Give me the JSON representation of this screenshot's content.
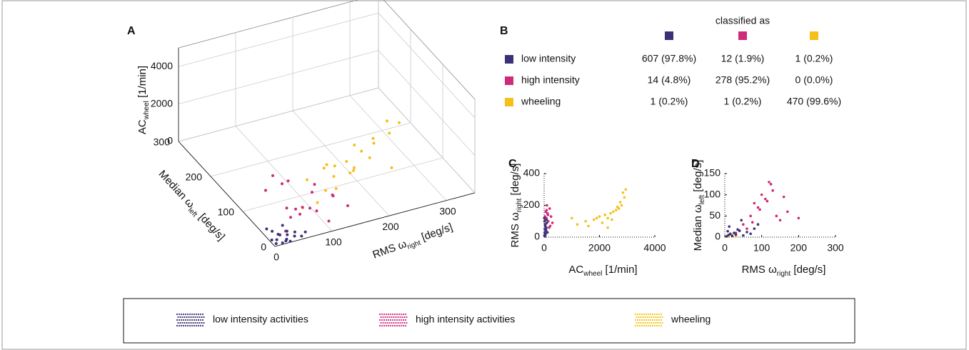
{
  "chart_data": [
    {
      "type": "scatter3d",
      "panel_label": "A",
      "x_label": {
        "text": "RMS ω",
        "sub": "right",
        "unit": " [deg/s]"
      },
      "y_label": {
        "text": "Median ω",
        "sub": "left",
        "unit": " [deg/s]"
      },
      "z_label": {
        "text": "AC",
        "sub": "wheel",
        "unit": " [1/min]"
      },
      "xlim": [
        0,
        350
      ],
      "ylim": [
        0,
        300
      ],
      "zlim": [
        0,
        5000
      ],
      "xticks": [
        0,
        100,
        200,
        300
      ],
      "yticks": [
        0,
        100,
        200,
        300
      ],
      "zticks": [
        0,
        2000,
        4000
      ],
      "grid": true,
      "series": [
        {
          "name": "wheeling",
          "color": "#f5c01a",
          "x": [
            80,
            100,
            120,
            140,
            160,
            180,
            200,
            220,
            90,
            110,
            130,
            150,
            170,
            190,
            210,
            240,
            100,
            130,
            160,
            60,
            230,
            145
          ],
          "y": [
            10,
            20,
            30,
            15,
            40,
            25,
            50,
            35,
            60,
            5,
            45,
            20,
            55,
            30,
            10,
            40,
            25,
            70,
            15,
            20,
            60,
            35
          ],
          "values": [
            1500,
            1800,
            2200,
            2500,
            2000,
            2800,
            3200,
            3600,
            1700,
            2100,
            2400,
            2600,
            3000,
            3400,
            2300,
            3900,
            2900,
            2000,
            3500,
            1200,
            3700,
            2700
          ]
        },
        {
          "name": "high intensity activities",
          "color": "#d02a7b",
          "x": [
            30,
            50,
            70,
            90,
            110,
            130,
            40,
            60,
            80,
            100,
            120,
            150,
            55,
            75,
            95,
            65,
            85,
            140
          ],
          "y": [
            20,
            40,
            60,
            30,
            80,
            50,
            100,
            70,
            120,
            10,
            90,
            40,
            20,
            140,
            60,
            30,
            110,
            70
          ],
          "values": [
            200,
            400,
            300,
            600,
            500,
            700,
            800,
            250,
            450,
            350,
            650,
            200,
            900,
            550,
            150,
            1000,
            750,
            300
          ]
        },
        {
          "name": "low intensity activities",
          "color": "#3b3276",
          "x": [
            5,
            10,
            15,
            20,
            25,
            30,
            35,
            40,
            12,
            22,
            45,
            50,
            8,
            18,
            28,
            60,
            3,
            33
          ],
          "y": [
            5,
            12,
            3,
            20,
            8,
            15,
            25,
            10,
            30,
            5,
            18,
            6,
            40,
            22,
            2,
            12,
            15,
            35
          ],
          "values": [
            20,
            50,
            10,
            80,
            30,
            100,
            60,
            40,
            150,
            20,
            70,
            30,
            120,
            90,
            10,
            60,
            40,
            200
          ]
        }
      ]
    },
    {
      "type": "scatter",
      "panel_label": "C",
      "x_label": {
        "text": "AC",
        "sub": "wheel",
        "unit": " [1/min]"
      },
      "y_label": {
        "text": "RMS ω",
        "sub": "right",
        "unit": " [deg/s]"
      },
      "xlim": [
        0,
        4000
      ],
      "ylim": [
        0,
        400
      ],
      "xticks": [
        0,
        2000,
        4000
      ],
      "yticks": [
        0,
        200,
        400
      ],
      "series": [
        {
          "color": "#f5c01a",
          "x": [
            1200,
            1500,
            1800,
            2000,
            2100,
            2200,
            2300,
            2400,
            2500,
            2600,
            2700,
            2800,
            2900,
            1600,
            1900,
            2450,
            2750,
            2950,
            1000,
            2650,
            2850,
            2300
          ],
          "values": [
            80,
            100,
            110,
            130,
            90,
            140,
            120,
            150,
            160,
            170,
            180,
            200,
            250,
            70,
            120,
            110,
            220,
            300,
            120,
            190,
            280,
            60
          ]
        },
        {
          "color": "#d02a7b",
          "x": [
            20,
            50,
            80,
            120,
            150,
            200,
            250,
            300,
            60,
            100,
            180,
            40,
            140,
            90,
            220,
            30
          ],
          "values": [
            50,
            80,
            120,
            150,
            100,
            180,
            130,
            90,
            160,
            200,
            60,
            110,
            140,
            170,
            70,
            130
          ]
        },
        {
          "color": "#3b3276",
          "x": [
            10,
            20,
            30,
            40,
            50,
            60,
            80,
            100,
            15,
            25,
            35,
            120,
            5,
            45,
            70,
            90
          ],
          "values": [
            10,
            30,
            50,
            70,
            20,
            40,
            60,
            90,
            100,
            5,
            80,
            30,
            120,
            15,
            45,
            110
          ]
        }
      ]
    },
    {
      "type": "scatter",
      "panel_label": "D",
      "x_label": {
        "text": "RMS ω",
        "sub": "right",
        "unit": " [deg/s]"
      },
      "y_label": {
        "text": "Median ω",
        "sub": "left",
        "unit": " [deg/s]"
      },
      "xlim": [
        0,
        300
      ],
      "ylim": [
        0,
        150
      ],
      "xticks": [
        0,
        100,
        200,
        300
      ],
      "yticks": [
        0,
        50,
        100,
        150
      ],
      "series": [
        {
          "color": "#f5c01a",
          "x": [
            10,
            20,
            30,
            15
          ],
          "values": [
            2,
            4,
            3,
            6
          ]
        },
        {
          "color": "#d02a7b",
          "x": [
            30,
            50,
            70,
            90,
            110,
            130,
            150,
            170,
            60,
            80,
            100,
            120,
            140,
            40,
            200,
            125,
            75,
            95,
            115,
            160
          ],
          "values": [
            10,
            30,
            50,
            70,
            90,
            110,
            40,
            60,
            20,
            80,
            100,
            130,
            50,
            15,
            45,
            125,
            35,
            65,
            85,
            95
          ]
        },
        {
          "color": "#3b3276",
          "x": [
            5,
            10,
            15,
            20,
            25,
            30,
            40,
            50,
            60,
            70,
            80,
            90,
            12,
            35,
            45,
            8
          ],
          "values": [
            2,
            5,
            8,
            3,
            10,
            6,
            15,
            4,
            12,
            8,
            20,
            30,
            25,
            18,
            40,
            14
          ]
        }
      ]
    }
  ],
  "table": {
    "panel_label": "B",
    "header": "classified as",
    "column_colors": [
      "#3b3276",
      "#d02a7b",
      "#f5c01a"
    ],
    "rows": [
      {
        "label": "low intensity",
        "color": "#3b3276",
        "cells": [
          "607 (97.8%)",
          "12 (1.9%)",
          "1 (0.2%)"
        ]
      },
      {
        "label": "high intensity",
        "color": "#d02a7b",
        "cells": [
          "14 (4.8%)",
          "278 (95.2%)",
          "0 (0.0%)"
        ]
      },
      {
        "label": "wheeling",
        "color": "#f5c01a",
        "cells": [
          "1 (0.2%)",
          "1 (0.2%)",
          "470 (99.6%)"
        ]
      }
    ]
  }
}
